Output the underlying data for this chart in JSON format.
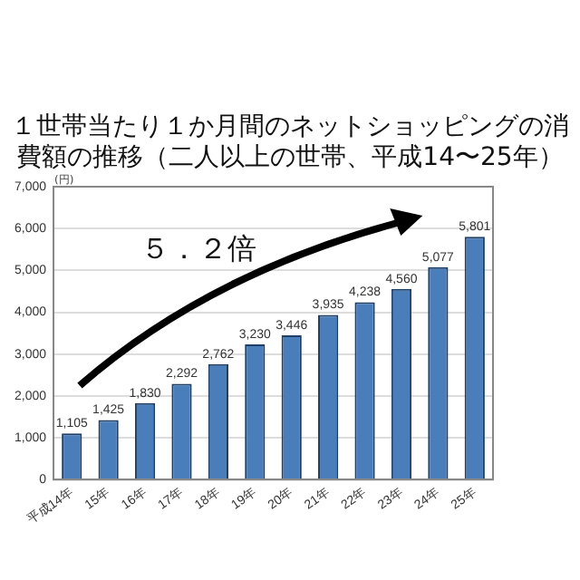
{
  "chart_data": {
    "type": "bar",
    "title": "１世帯当たり１か月間のネットショッピングの消費額の推移（二人以上の世帯、平成14〜25年）",
    "ylabel": "(円)",
    "categories": [
      "平成14年",
      "15年",
      "16年",
      "17年",
      "18年",
      "19年",
      "20年",
      "21年",
      "22年",
      "23年",
      "24年",
      "25年"
    ],
    "values": [
      1105,
      1425,
      1830,
      2292,
      2762,
      3230,
      3446,
      3935,
      4238,
      4560,
      5077,
      5801
    ],
    "color": "#4a7ebb",
    "ylim": [
      0,
      7000
    ],
    "yticks": [
      {
        "value": 0,
        "label": "0"
      },
      {
        "value": 1000,
        "label": "1,000"
      },
      {
        "value": 2000,
        "label": "2,000"
      },
      {
        "value": 3000,
        "label": "3,000"
      },
      {
        "value": 4000,
        "label": "4,000"
      },
      {
        "value": 5000,
        "label": "5,000"
      },
      {
        "value": 6000,
        "label": "6,000"
      },
      {
        "value": 7000,
        "label": "7,000"
      }
    ],
    "value_labels": [
      "1,105",
      "1,425",
      "1,830",
      "2,292",
      "2,762",
      "3,230",
      "3,446",
      "3,935",
      "4,238",
      "4,560",
      "5,077",
      "5,801"
    ],
    "grid": "y",
    "annotations": [
      "５．２倍"
    ]
  }
}
